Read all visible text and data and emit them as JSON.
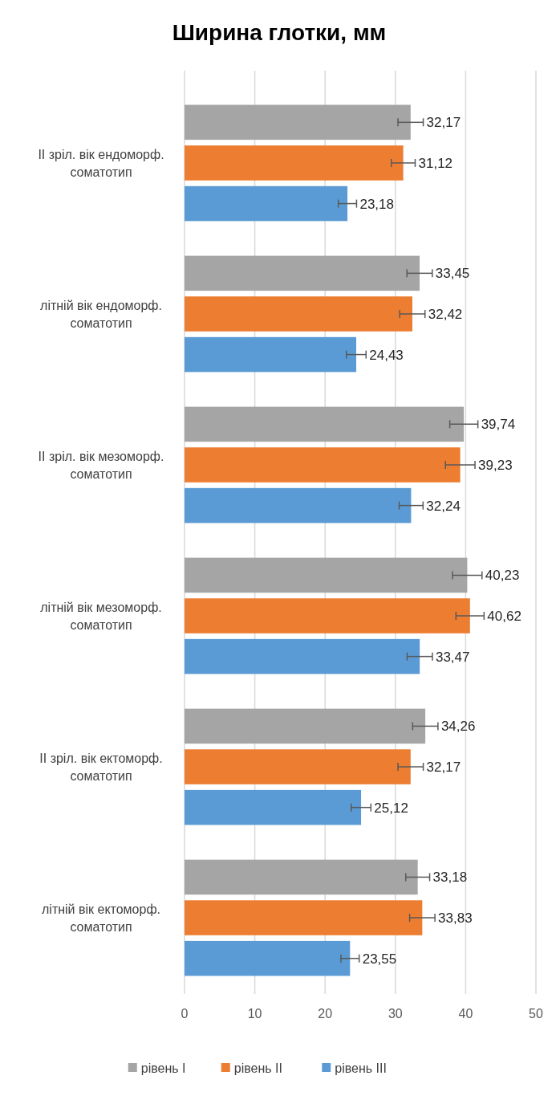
{
  "chart_data": {
    "type": "bar",
    "orientation": "horizontal",
    "title": "Ширина глотки, мм",
    "categories": [
      "II зріл. вік ендоморф. соматотип",
      "літній вік ендоморф. соматотип",
      "II зріл. вік мезоморф. соматотип",
      "літній вік мезоморф. соматотип",
      "II зріл. вік ектоморф. соматотип",
      "літній вік ектоморф. соматотип"
    ],
    "series": [
      {
        "name": "рівень I",
        "color": "#a5a5a5",
        "values": [
          32.17,
          33.45,
          39.74,
          40.23,
          34.26,
          33.18
        ],
        "value_labels": [
          "32,17",
          "33,45",
          "39,74",
          "40,23",
          "34,26",
          "33,18"
        ],
        "errors": [
          1.8,
          1.8,
          2.0,
          2.1,
          1.8,
          1.7
        ]
      },
      {
        "name": "рівень II",
        "color": "#ed7d31",
        "values": [
          31.12,
          32.42,
          39.23,
          40.62,
          32.17,
          33.83
        ],
        "value_labels": [
          "31,12",
          "32,42",
          "39,23",
          "40,62",
          "32,17",
          "33,83"
        ],
        "errors": [
          1.7,
          1.8,
          2.1,
          2.0,
          1.8,
          1.8
        ]
      },
      {
        "name": "рівень III",
        "color": "#5b9bd5",
        "values": [
          23.18,
          24.43,
          32.24,
          33.47,
          25.12,
          23.55
        ],
        "value_labels": [
          "23,18",
          "24,43",
          "32,24",
          "33,47",
          "25,12",
          "23,55"
        ],
        "errors": [
          1.3,
          1.4,
          1.7,
          1.8,
          1.4,
          1.3
        ]
      }
    ],
    "xlim": [
      0,
      50
    ],
    "xticks": [
      0,
      10,
      20,
      30,
      40,
      50
    ],
    "grid": "x",
    "legend": "bottom"
  }
}
